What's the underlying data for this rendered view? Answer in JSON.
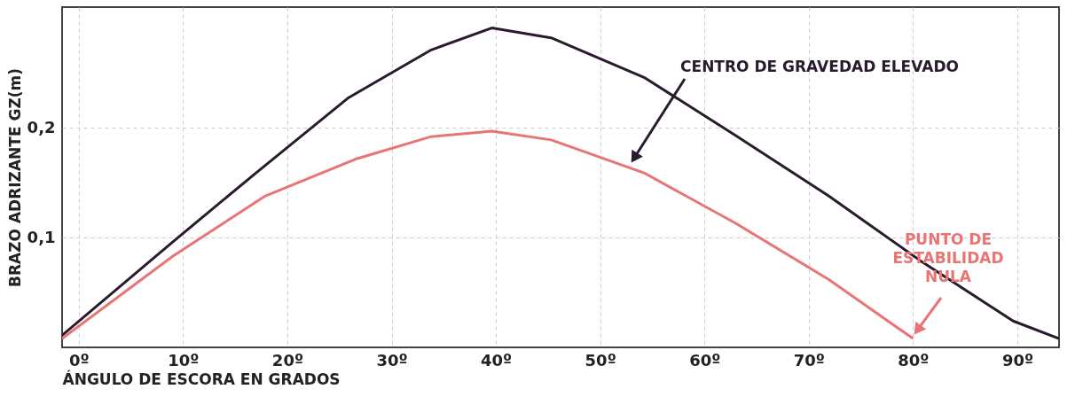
{
  "chart_data": {
    "type": "line",
    "xlabel": "ÁNGULO DE ESCORA EN GRADOS",
    "ylabel": "BRAZO ADRIZANTE GZ(m)",
    "xlim": [
      -1.6,
      94
    ],
    "ylim": [
      0,
      0.31
    ],
    "xticks": [
      {
        "value": 0,
        "label": "0º"
      },
      {
        "value": 10,
        "label": "10º"
      },
      {
        "value": 20,
        "label": "20º"
      },
      {
        "value": 30,
        "label": "30º"
      },
      {
        "value": 40,
        "label": "40º"
      },
      {
        "value": 50,
        "label": "50º"
      },
      {
        "value": 60,
        "label": "60º"
      },
      {
        "value": 70,
        "label": "70º"
      },
      {
        "value": 80,
        "label": "80º"
      },
      {
        "value": 90,
        "label": "90º"
      }
    ],
    "yticks": [
      {
        "value": 0.1,
        "label": "0,1"
      },
      {
        "value": 0.2,
        "label": "0,2"
      }
    ],
    "grid": true,
    "legend": false,
    "marker": "none",
    "line_style": "solid",
    "series": [
      {
        "color": "#2a1a2e",
        "x": [
          -1.6,
          9,
          17,
          25.8,
          33.8,
          39.6,
          45.3,
          54.2,
          63,
          71.9,
          80.7,
          89.6,
          94
        ],
        "values": [
          0.011,
          0.096,
          0.159,
          0.227,
          0.271,
          0.291,
          0.282,
          0.246,
          0.193,
          0.138,
          0.079,
          0.024,
          0.008
        ]
      },
      {
        "color": "#e87474",
        "x": [
          -1.6,
          9,
          17.9,
          26.7,
          33.8,
          39.6,
          45.3,
          54.2,
          63,
          71.9,
          80
        ],
        "values": [
          0.008,
          0.083,
          0.138,
          0.172,
          0.192,
          0.197,
          0.189,
          0.159,
          0.113,
          0.062,
          0.008
        ]
      }
    ],
    "annotations": [
      "CENTRO DE GRAVEDAD ELEVADO",
      "PUNTO DE\nESTABILIDAD\nNULA"
    ]
  }
}
